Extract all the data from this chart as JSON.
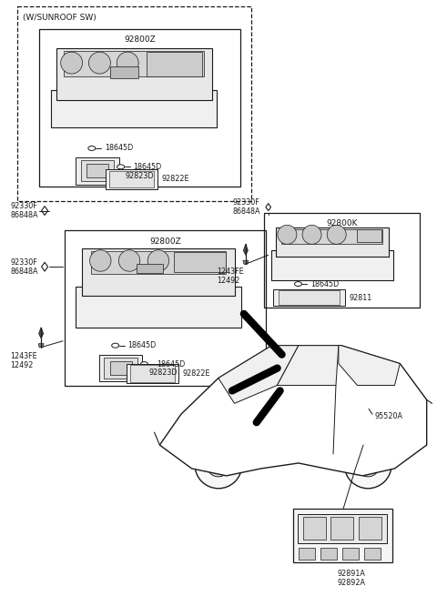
{
  "bg_color": "#ffffff",
  "line_color": "#1a1a1a",
  "fig_width": 4.8,
  "fig_height": 6.55,
  "dpi": 100,
  "labels": {
    "w_sunroof": "(W/SUNROOF SW)",
    "92800Z_top": "92800Z",
    "92800Z_bot": "92800Z",
    "92800K": "92800K",
    "18645D": "18645D",
    "92823D": "92823D",
    "92822E": "92822E",
    "92811": "92811",
    "92330F": "92330F",
    "86848A": "86848A",
    "1243FE": "1243FE",
    "12492": "12492",
    "95520A": "95520A",
    "92891A": "92891A",
    "92892A": "92892A"
  },
  "fs": 5.8,
  "fl": 6.5
}
